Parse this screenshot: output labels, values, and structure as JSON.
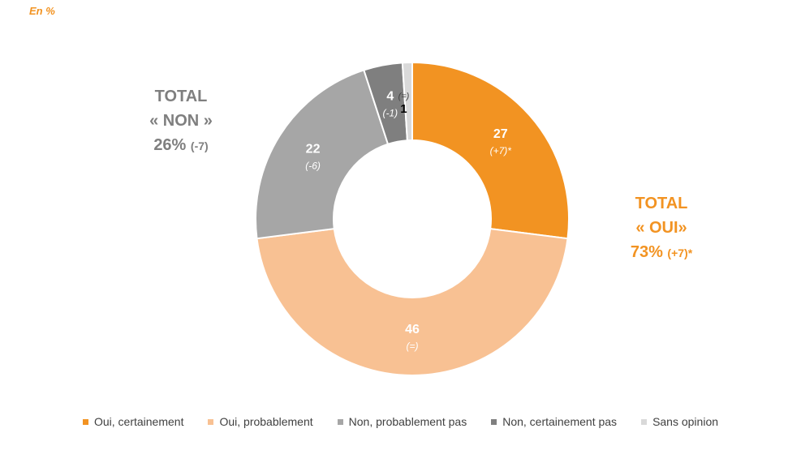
{
  "unit_label": "En %",
  "totals": {
    "non": {
      "line1": "TOTAL",
      "line2": "« NON »",
      "value": "26%",
      "change": "(-7)"
    },
    "oui": {
      "line1": "TOTAL",
      "line2": "« OUI»",
      "value": "73%",
      "change": "(+7)*"
    }
  },
  "chart_data": {
    "type": "pie",
    "donut": true,
    "start_angle_deg": 0,
    "direction": "clockwise",
    "categories": [
      "Oui, certainement",
      "Oui, probablement",
      "Non, probablement pas",
      "Non, certainement pas",
      "Sans opinion"
    ],
    "values": [
      27,
      46,
      22,
      4,
      1
    ],
    "value_labels": [
      "27",
      "46",
      "22",
      "4",
      "1"
    ],
    "change_labels": [
      "(+7)*",
      "(=)",
      "(-6)",
      "(-1)",
      "(=)"
    ],
    "colors": [
      "#f29322",
      "#f8c193",
      "#a6a6a6",
      "#7f7f7f",
      "#d9d9d9"
    ],
    "legend_position": "bottom"
  }
}
